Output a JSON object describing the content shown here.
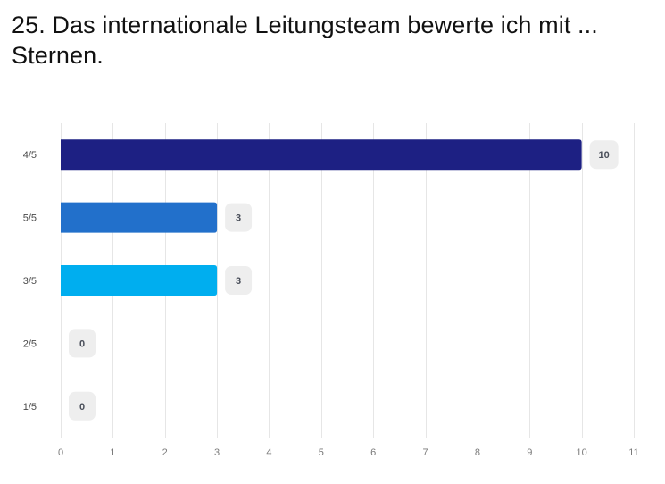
{
  "chart_data": {
    "type": "bar",
    "orientation": "horizontal",
    "title": "25. Das internationale Leitungsteam bewerte ich mit ... Sternen.",
    "categories": [
      "4/5",
      "5/5",
      "3/5",
      "2/5",
      "1/5"
    ],
    "values": [
      10,
      3,
      3,
      0,
      0
    ],
    "colors": [
      "#1d2083",
      "#2270cb",
      "#00aeef",
      "#cccccc",
      "#cccccc"
    ],
    "xlim": [
      0,
      11
    ],
    "xticks": [
      0,
      1,
      2,
      3,
      4,
      5,
      6,
      7,
      8,
      9,
      10,
      11
    ],
    "xlabel": "",
    "ylabel": "",
    "grid": "vertical"
  }
}
